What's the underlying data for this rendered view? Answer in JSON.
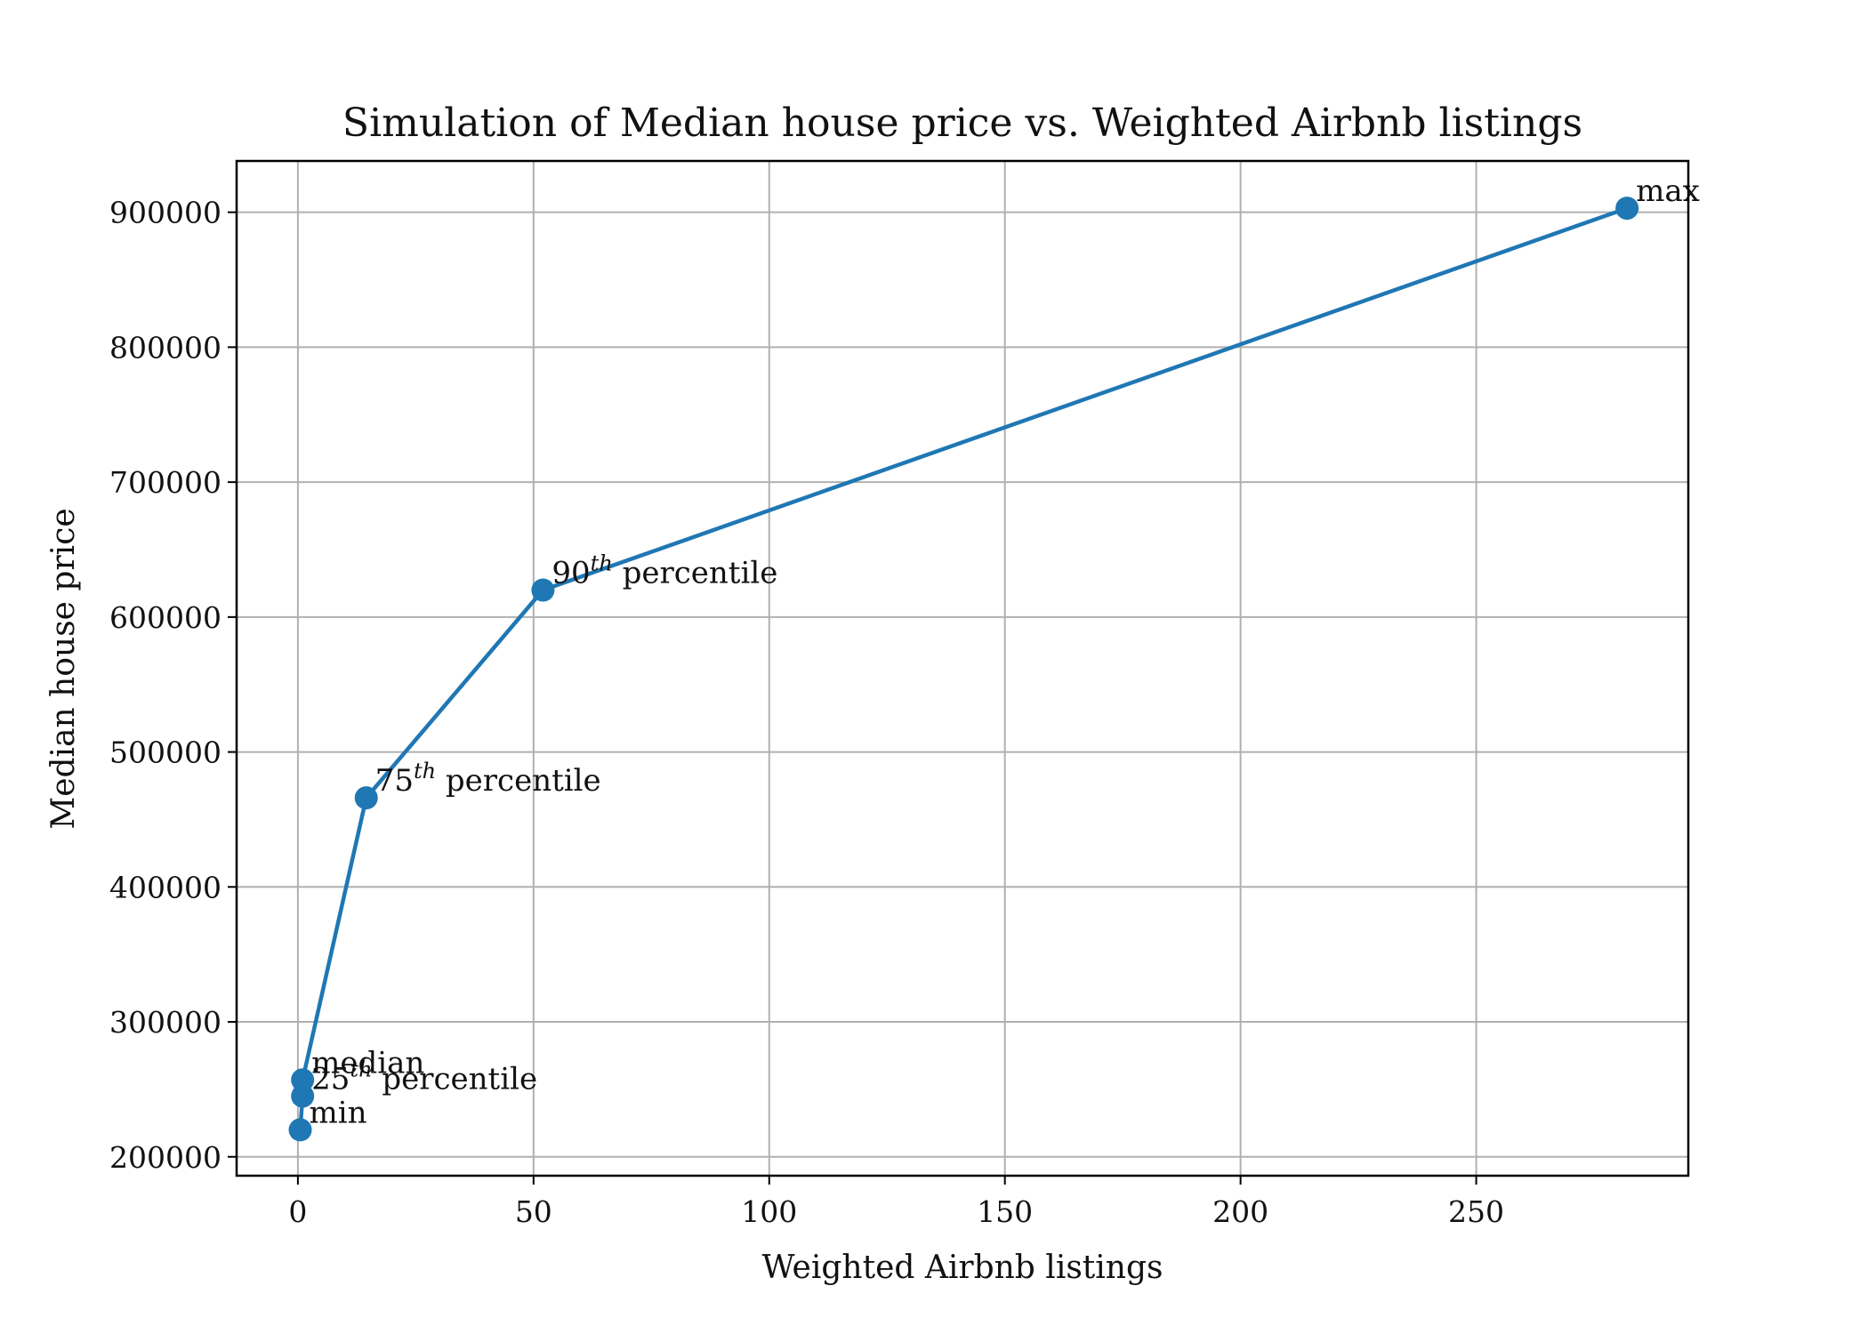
{
  "chart_data": {
    "type": "line",
    "title": "Simulation of Median house price vs. Weighted Airbnb listings",
    "xlabel": "Weighted Airbnb listings",
    "ylabel": "Median house price",
    "xlim": [
      -13,
      295
    ],
    "ylim": [
      186000,
      938000
    ],
    "xticks": [
      0,
      50,
      100,
      150,
      200,
      250
    ],
    "yticks": [
      200000,
      300000,
      400000,
      500000,
      600000,
      700000,
      800000,
      900000
    ],
    "grid": true,
    "color": "#1f77b4",
    "series": [
      {
        "x": [
          0.5,
          1,
          1,
          14.5,
          52,
          282
        ],
        "y": [
          220000,
          245000,
          257000,
          466000,
          620000,
          903000
        ],
        "labels": [
          {
            "text": "min"
          },
          {
            "base": "25",
            "sup": "th",
            "rest": " percentile"
          },
          {
            "text": "median"
          },
          {
            "base": "75",
            "sup": "th",
            "rest": " percentile"
          },
          {
            "base": "90",
            "sup": "th",
            "rest": " percentile"
          },
          {
            "text": "max"
          }
        ]
      }
    ]
  }
}
